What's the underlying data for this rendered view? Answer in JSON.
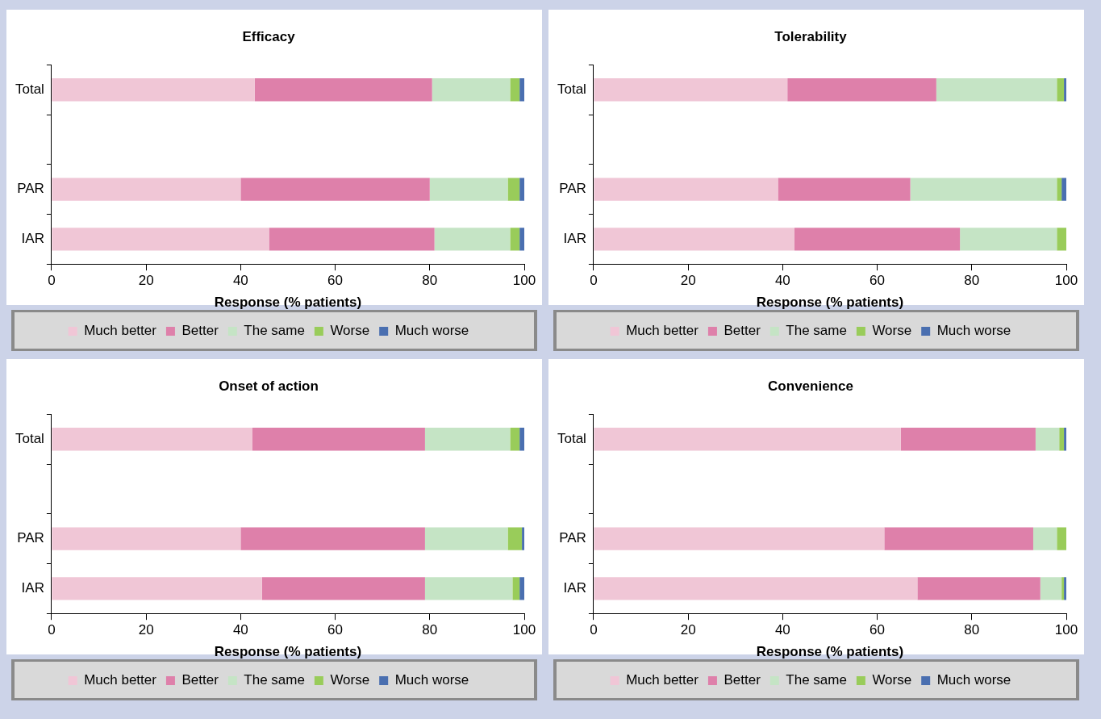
{
  "chart_data": [
    {
      "type": "bar",
      "title": "Efficacy",
      "orientation": "horizontal",
      "stacked": true,
      "categories": [
        "Total",
        null,
        "PAR",
        "IAR"
      ],
      "xlabel": "Response (% patients)",
      "xlim": [
        0,
        100
      ],
      "xticks": [
        0,
        20,
        40,
        60,
        80,
        100
      ],
      "grid": false,
      "legend": "bottom",
      "series": [
        {
          "name": "Much better",
          "color": "#f0c6d6",
          "values": [
            43,
            null,
            40,
            46
          ]
        },
        {
          "name": "Better",
          "color": "#de80aa",
          "values": [
            37.5,
            null,
            40,
            35
          ]
        },
        {
          "name": "The same",
          "color": "#c5e4c5",
          "values": [
            16.5,
            null,
            16.5,
            16
          ]
        },
        {
          "name": "Worse",
          "color": "#99cc5a",
          "values": [
            2,
            null,
            2.5,
            2
          ]
        },
        {
          "name": "Much worse",
          "color": "#4a6fb0",
          "values": [
            1,
            null,
            1,
            1
          ]
        }
      ]
    },
    {
      "type": "bar",
      "title": "Tolerability",
      "orientation": "horizontal",
      "stacked": true,
      "categories": [
        "Total",
        null,
        "PAR",
        "IAR"
      ],
      "xlabel": "Response (% patients)",
      "xlim": [
        0,
        100
      ],
      "xticks": [
        0,
        20,
        40,
        60,
        80,
        100
      ],
      "grid": false,
      "legend": "bottom",
      "series": [
        {
          "name": "Much better",
          "color": "#f0c6d6",
          "values": [
            41,
            null,
            39,
            42.5
          ]
        },
        {
          "name": "Better",
          "color": "#de80aa",
          "values": [
            31.5,
            null,
            28,
            35
          ]
        },
        {
          "name": "The same",
          "color": "#c5e4c5",
          "values": [
            25.5,
            null,
            31,
            20.5
          ]
        },
        {
          "name": "Worse",
          "color": "#99cc5a",
          "values": [
            1.5,
            null,
            1,
            2
          ]
        },
        {
          "name": "Much worse",
          "color": "#4a6fb0",
          "values": [
            0.5,
            null,
            1,
            0
          ]
        }
      ]
    },
    {
      "type": "bar",
      "title": "Onset of action",
      "orientation": "horizontal",
      "stacked": true,
      "categories": [
        "Total",
        null,
        "PAR",
        "IAR"
      ],
      "xlabel": "Response (% patients)",
      "xlim": [
        0,
        100
      ],
      "xticks": [
        0,
        20,
        40,
        60,
        80,
        100
      ],
      "grid": false,
      "legend": "bottom",
      "series": [
        {
          "name": "Much better",
          "color": "#f0c6d6",
          "values": [
            42.5,
            null,
            40,
            44.5
          ]
        },
        {
          "name": "Better",
          "color": "#de80aa",
          "values": [
            36.5,
            null,
            39,
            34.5
          ]
        },
        {
          "name": "The same",
          "color": "#c5e4c5",
          "values": [
            18,
            null,
            17.5,
            18.5
          ]
        },
        {
          "name": "Worse",
          "color": "#99cc5a",
          "values": [
            2,
            null,
            3,
            1.5
          ]
        },
        {
          "name": "Much worse",
          "color": "#4a6fb0",
          "values": [
            1,
            null,
            0.5,
            1
          ]
        }
      ]
    },
    {
      "type": "bar",
      "title": "Convenience",
      "orientation": "horizontal",
      "stacked": true,
      "categories": [
        "Total",
        null,
        "PAR",
        "IAR"
      ],
      "xlabel": "Response (% patients)",
      "xlim": [
        0,
        100
      ],
      "xticks": [
        0,
        20,
        40,
        60,
        80,
        100
      ],
      "grid": false,
      "legend": "bottom",
      "series": [
        {
          "name": "Much better",
          "color": "#f0c6d6",
          "values": [
            65,
            null,
            61.5,
            68.5
          ]
        },
        {
          "name": "Better",
          "color": "#de80aa",
          "values": [
            28.5,
            null,
            31.5,
            26
          ]
        },
        {
          "name": "The same",
          "color": "#c5e4c5",
          "values": [
            5,
            null,
            5,
            4.5
          ]
        },
        {
          "name": "Worse",
          "color": "#99cc5a",
          "values": [
            1,
            null,
            2,
            0.5
          ]
        },
        {
          "name": "Much worse",
          "color": "#4a6fb0",
          "values": [
            0.5,
            null,
            0,
            0.5
          ]
        }
      ]
    }
  ]
}
